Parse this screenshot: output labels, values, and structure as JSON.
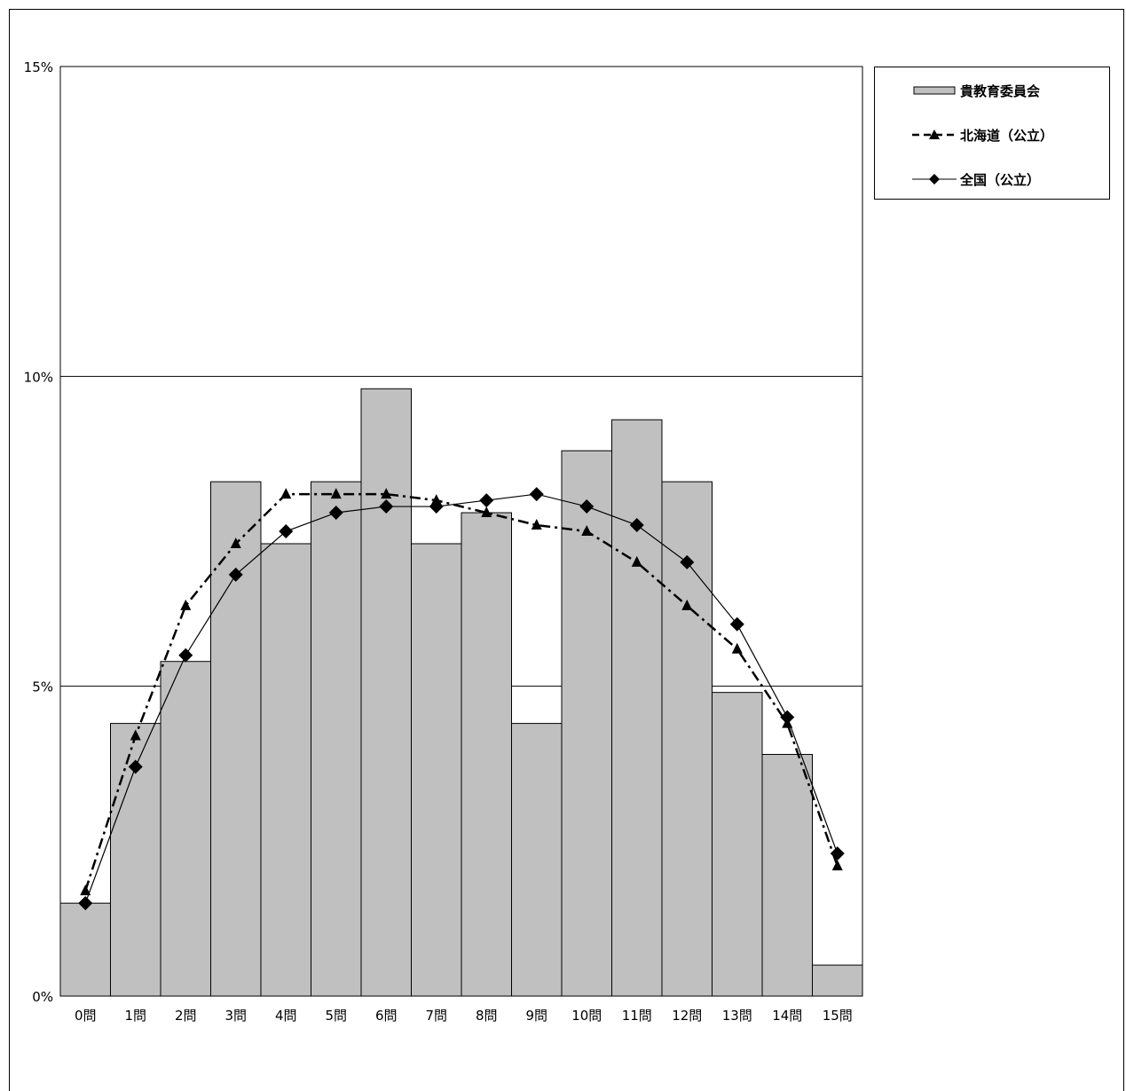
{
  "chart_data": {
    "type": "bar",
    "categories": [
      "0問",
      "1問",
      "2問",
      "3問",
      "4問",
      "5問",
      "6問",
      "7問",
      "8問",
      "9問",
      "10問",
      "11問",
      "12問",
      "13問",
      "14問",
      "15問"
    ],
    "ylim": [
      0,
      15
    ],
    "yticks": [
      0,
      5,
      10,
      15
    ],
    "ytick_labels": [
      "0%",
      "5%",
      "10%",
      "15%"
    ],
    "grid": true,
    "legend_position": "top-right",
    "series": [
      {
        "name": "貴教育委員会",
        "kind": "bar",
        "color": "#c0c0c0",
        "values": [
          1.5,
          4.4,
          5.4,
          8.3,
          7.3,
          8.3,
          9.8,
          7.3,
          7.8,
          4.4,
          8.8,
          9.3,
          8.3,
          4.9,
          3.9,
          0.5
        ]
      },
      {
        "name": "北海道（公立）",
        "kind": "line",
        "marker": "triangle",
        "line_style": "dash-dot",
        "color": "#000000",
        "values": [
          1.7,
          4.2,
          6.3,
          7.3,
          8.1,
          8.1,
          8.1,
          8.0,
          7.8,
          7.6,
          7.5,
          7.0,
          6.3,
          5.6,
          4.4,
          2.1
        ]
      },
      {
        "name": "全国（公立）",
        "kind": "line",
        "marker": "diamond",
        "line_style": "solid",
        "color": "#000000",
        "values": [
          1.5,
          3.7,
          5.5,
          6.8,
          7.5,
          7.8,
          7.9,
          7.9,
          8.0,
          8.1,
          7.9,
          7.6,
          7.0,
          6.0,
          4.5,
          2.3
        ]
      }
    ]
  }
}
